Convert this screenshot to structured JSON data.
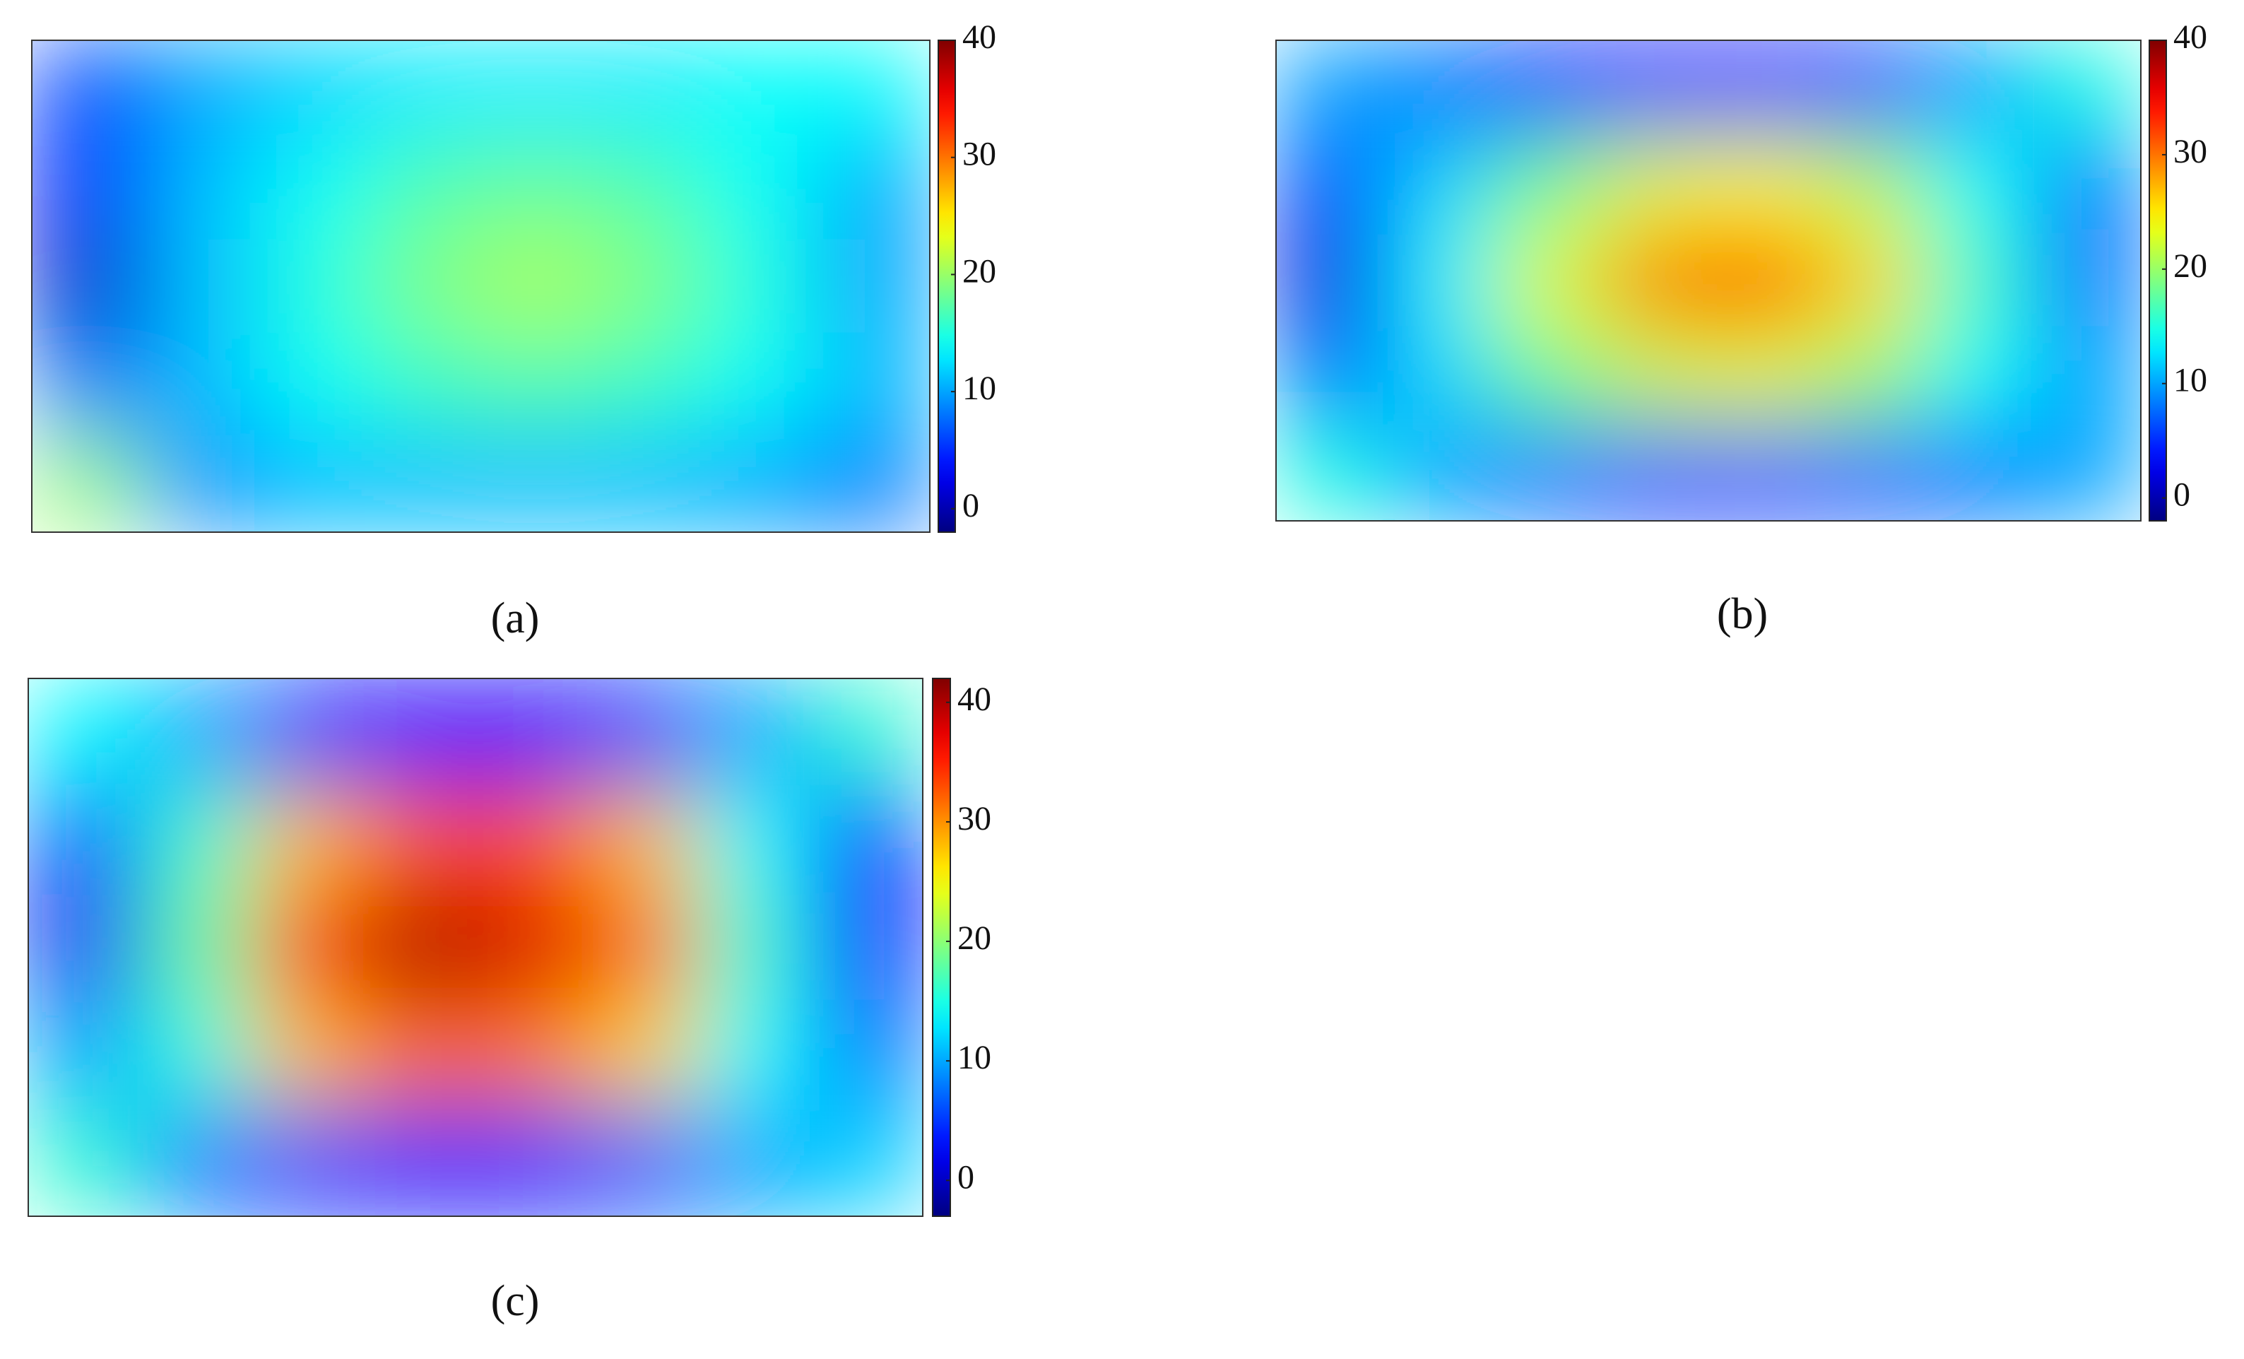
{
  "chart_data": [
    {
      "type": "contour",
      "label": "(a)",
      "colormap": "jet",
      "clim": [
        -2,
        40
      ],
      "cticks": [
        0,
        10,
        20,
        30,
        40
      ],
      "z": [
        [
          6,
          10,
          12,
          13,
          13,
          13,
          14,
          14
        ],
        [
          4,
          11,
          14,
          17,
          18,
          17,
          14,
          10
        ],
        [
          1,
          11,
          15,
          19,
          21,
          19,
          15,
          10
        ],
        [
          8,
          11,
          14,
          16,
          17,
          16,
          14,
          11
        ],
        [
          20,
          9,
          11,
          11,
          11,
          11,
          10,
          8
        ]
      ]
    },
    {
      "type": "contour",
      "label": "(b)",
      "colormap": "jet",
      "clim": [
        -2,
        40
      ],
      "cticks": [
        0,
        10,
        20,
        30,
        40
      ],
      "z": [
        [
          10,
          8,
          5,
          4,
          4,
          6,
          10,
          15
        ],
        [
          6,
          12,
          18,
          23,
          24,
          21,
          14,
          8
        ],
        [
          2,
          13,
          23,
          30,
          32,
          26,
          16,
          8
        ],
        [
          8,
          12,
          18,
          22,
          23,
          20,
          14,
          10
        ],
        [
          15,
          10,
          8,
          6,
          6,
          7,
          8,
          10
        ]
      ]
    },
    {
      "type": "contour",
      "label": "(c)",
      "colormap": "jet",
      "clim": [
        -3,
        42
      ],
      "cticks": [
        0,
        10,
        20,
        30,
        40
      ],
      "z": [
        [
          14,
          10,
          4,
          3,
          3,
          5,
          10,
          16
        ],
        [
          6,
          16,
          28,
          33,
          33,
          28,
          14,
          4
        ],
        [
          2,
          18,
          34,
          40,
          38,
          32,
          16,
          3
        ],
        [
          10,
          15,
          28,
          32,
          31,
          27,
          14,
          8
        ],
        [
          16,
          8,
          5,
          4,
          4,
          6,
          10,
          12
        ]
      ]
    }
  ]
}
